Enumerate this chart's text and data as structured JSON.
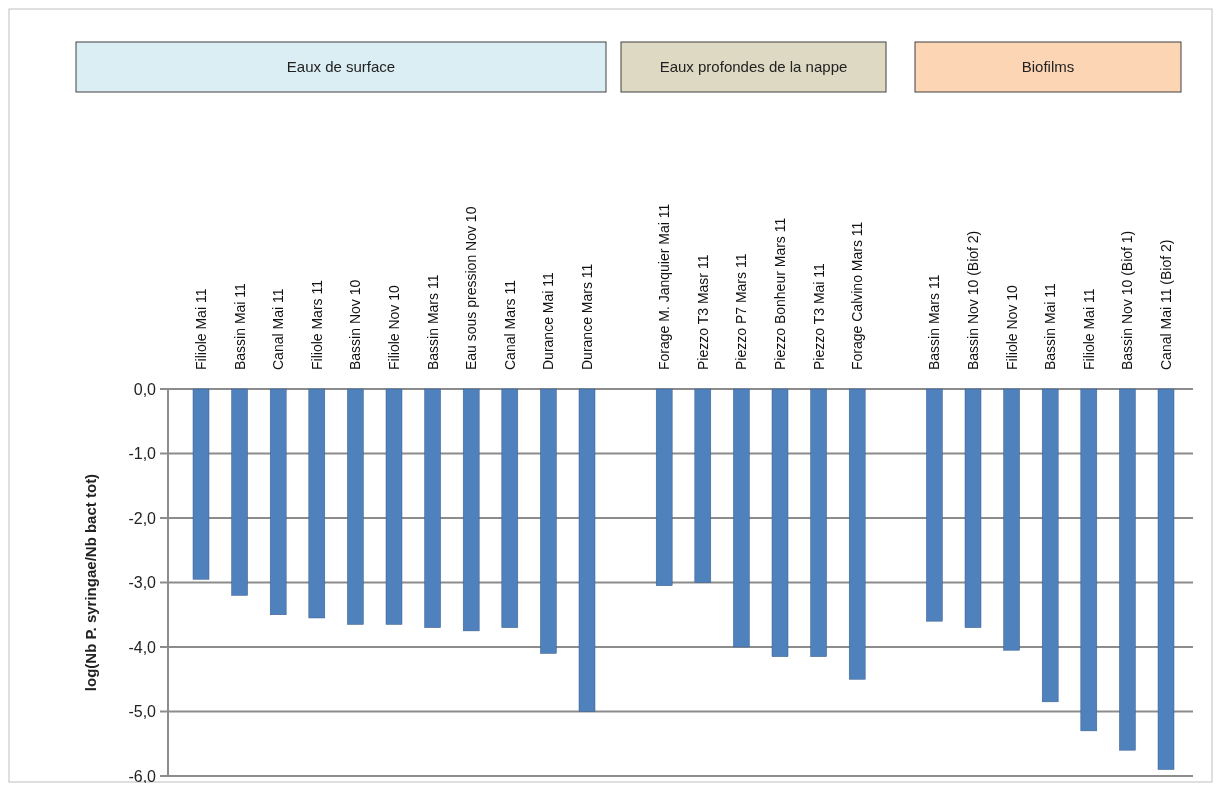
{
  "chart_data": {
    "type": "bar",
    "ylabel": "log(Nb P. syringae/Nb bact tot)",
    "categories": [
      "Filiole Mai 11",
      "Bassin Mai 11",
      "Canal Mai 11",
      "Filiole Mars 11",
      "Bassin Nov 10",
      "Filiole Nov 10",
      "Bassin Mars 11",
      "Eau sous pression Nov 10",
      "Canal Mars 11",
      "Durance Mai 11",
      "Durance Mars 11",
      null,
      "Forage M. Janquier Mai 11",
      "Piezzo T3 Masr 11",
      "Piezzo P7 Mars 11",
      "Piezzo Bonheur Mars 11",
      "Piezzo T3 Mai 11",
      "Forage Calvino Mars 11",
      null,
      "Bassin Mars 11",
      "Bassin Nov 10 (Biof 2)",
      "Filiole Nov 10",
      "Bassin Mai 11",
      "Filiole Mai 11",
      "Bassin Nov 10 (Biof 1)",
      "Canal Mai 11 (Biof 2)"
    ],
    "values": [
      -2.95,
      -3.2,
      -3.5,
      -3.55,
      -3.65,
      -3.65,
      -3.7,
      -3.75,
      -3.7,
      -4.1,
      -5.0,
      null,
      -3.05,
      -3.0,
      -4.0,
      -4.15,
      -4.15,
      -4.5,
      null,
      -3.6,
      -3.7,
      -4.05,
      -4.85,
      -5.3,
      -5.6,
      -5.9
    ],
    "color": "#4f81bd",
    "ylim": [
      -6,
      0
    ],
    "yticks": [
      {
        "value": 0,
        "label": "0,0"
      },
      {
        "value": -1,
        "label": "-1,0"
      },
      {
        "value": -2,
        "label": "-2,0"
      },
      {
        "value": -3,
        "label": "-3,0"
      },
      {
        "value": -4,
        "label": "-4,0"
      },
      {
        "value": -5,
        "label": "-5,0"
      },
      {
        "value": -6,
        "label": "-6,0"
      }
    ],
    "grid": "y",
    "annotations": [
      "Eaux de surface",
      "Eaux profondes de la nappe",
      "Biofilms"
    ]
  }
}
